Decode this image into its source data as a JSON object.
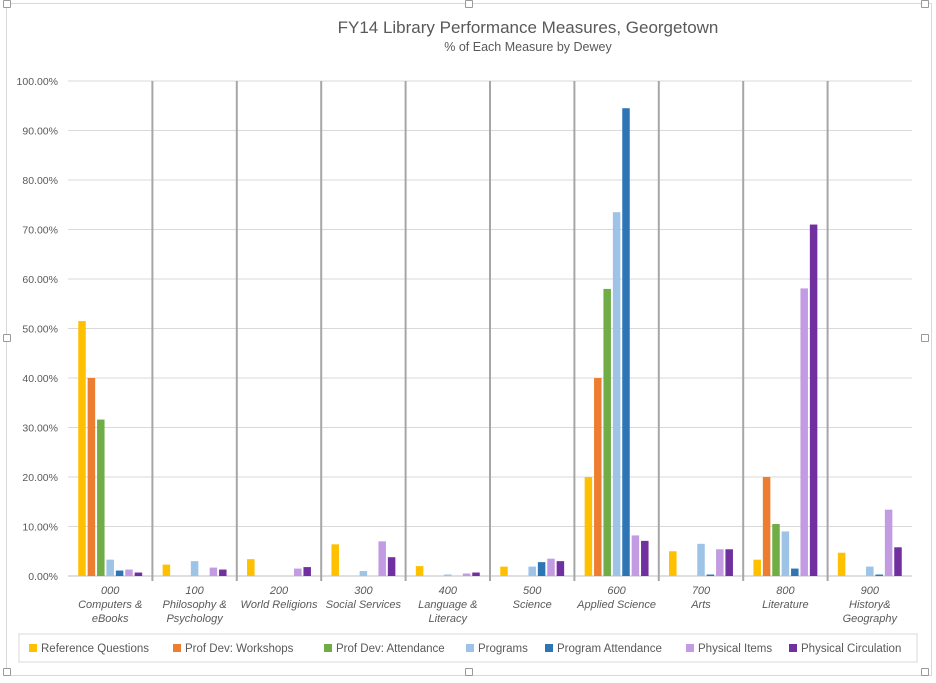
{
  "chart_data": {
    "type": "bar",
    "title": "FY14 Library Performance Measures, Georgetown",
    "subtitle": "% of Each Measure by Dewey",
    "ylim": [
      0,
      100
    ],
    "y_ticks": [
      "0.00%",
      "10.00%",
      "20.00%",
      "30.00%",
      "40.00%",
      "50.00%",
      "60.00%",
      "70.00%",
      "80.00%",
      "90.00%",
      "100.00%"
    ],
    "categories": [
      {
        "code": "000",
        "name": "Computers &",
        "name2": "eBooks"
      },
      {
        "code": "100",
        "name": "Philosophy &",
        "name2": "Psychology"
      },
      {
        "code": "200",
        "name": "World Religions",
        "name2": ""
      },
      {
        "code": "300",
        "name": "Social Services",
        "name2": ""
      },
      {
        "code": "400",
        "name": "Language &",
        "name2": "Literacy"
      },
      {
        "code": "500",
        "name": "Science",
        "name2": ""
      },
      {
        "code": "600",
        "name": "Applied Science",
        "name2": ""
      },
      {
        "code": "700",
        "name": "Arts",
        "name2": ""
      },
      {
        "code": "800",
        "name": "Literature",
        "name2": ""
      },
      {
        "code": "900",
        "name": "History&",
        "name2": "Geography"
      }
    ],
    "series": [
      {
        "name": "Reference Questions",
        "color": "#FFC000",
        "values": [
          51.5,
          2.3,
          3.4,
          6.4,
          2.0,
          1.9,
          20.0,
          5.0,
          3.3,
          4.7
        ]
      },
      {
        "name": "Prof Dev: Workshops",
        "color": "#ED7D31",
        "values": [
          40.0,
          0,
          0,
          0,
          0,
          0,
          40.0,
          0,
          20.0,
          0
        ]
      },
      {
        "name": "Prof Dev: Attendance",
        "color": "#70AD47",
        "values": [
          31.6,
          0,
          0,
          0,
          0,
          0,
          58.0,
          0,
          10.5,
          0
        ]
      },
      {
        "name": "Programs",
        "color": "#9DC3E6",
        "values": [
          3.3,
          3.0,
          0,
          1.0,
          0.3,
          1.9,
          73.5,
          6.5,
          9.0,
          1.9
        ]
      },
      {
        "name": "Program Attendance",
        "color": "#2E75B6",
        "values": [
          1.1,
          0,
          0,
          0,
          0,
          2.8,
          94.5,
          0.3,
          1.5,
          0.3
        ]
      },
      {
        "name": "Physical Items",
        "color": "#C39BE2",
        "values": [
          1.3,
          1.7,
          1.5,
          7.0,
          0.5,
          3.5,
          8.2,
          5.4,
          58.1,
          13.4
        ]
      },
      {
        "name": "Physical Circulation",
        "color": "#7030A0",
        "values": [
          0.7,
          1.3,
          1.8,
          3.8,
          0.7,
          3.0,
          7.1,
          5.4,
          71.0,
          5.8
        ]
      }
    ]
  }
}
